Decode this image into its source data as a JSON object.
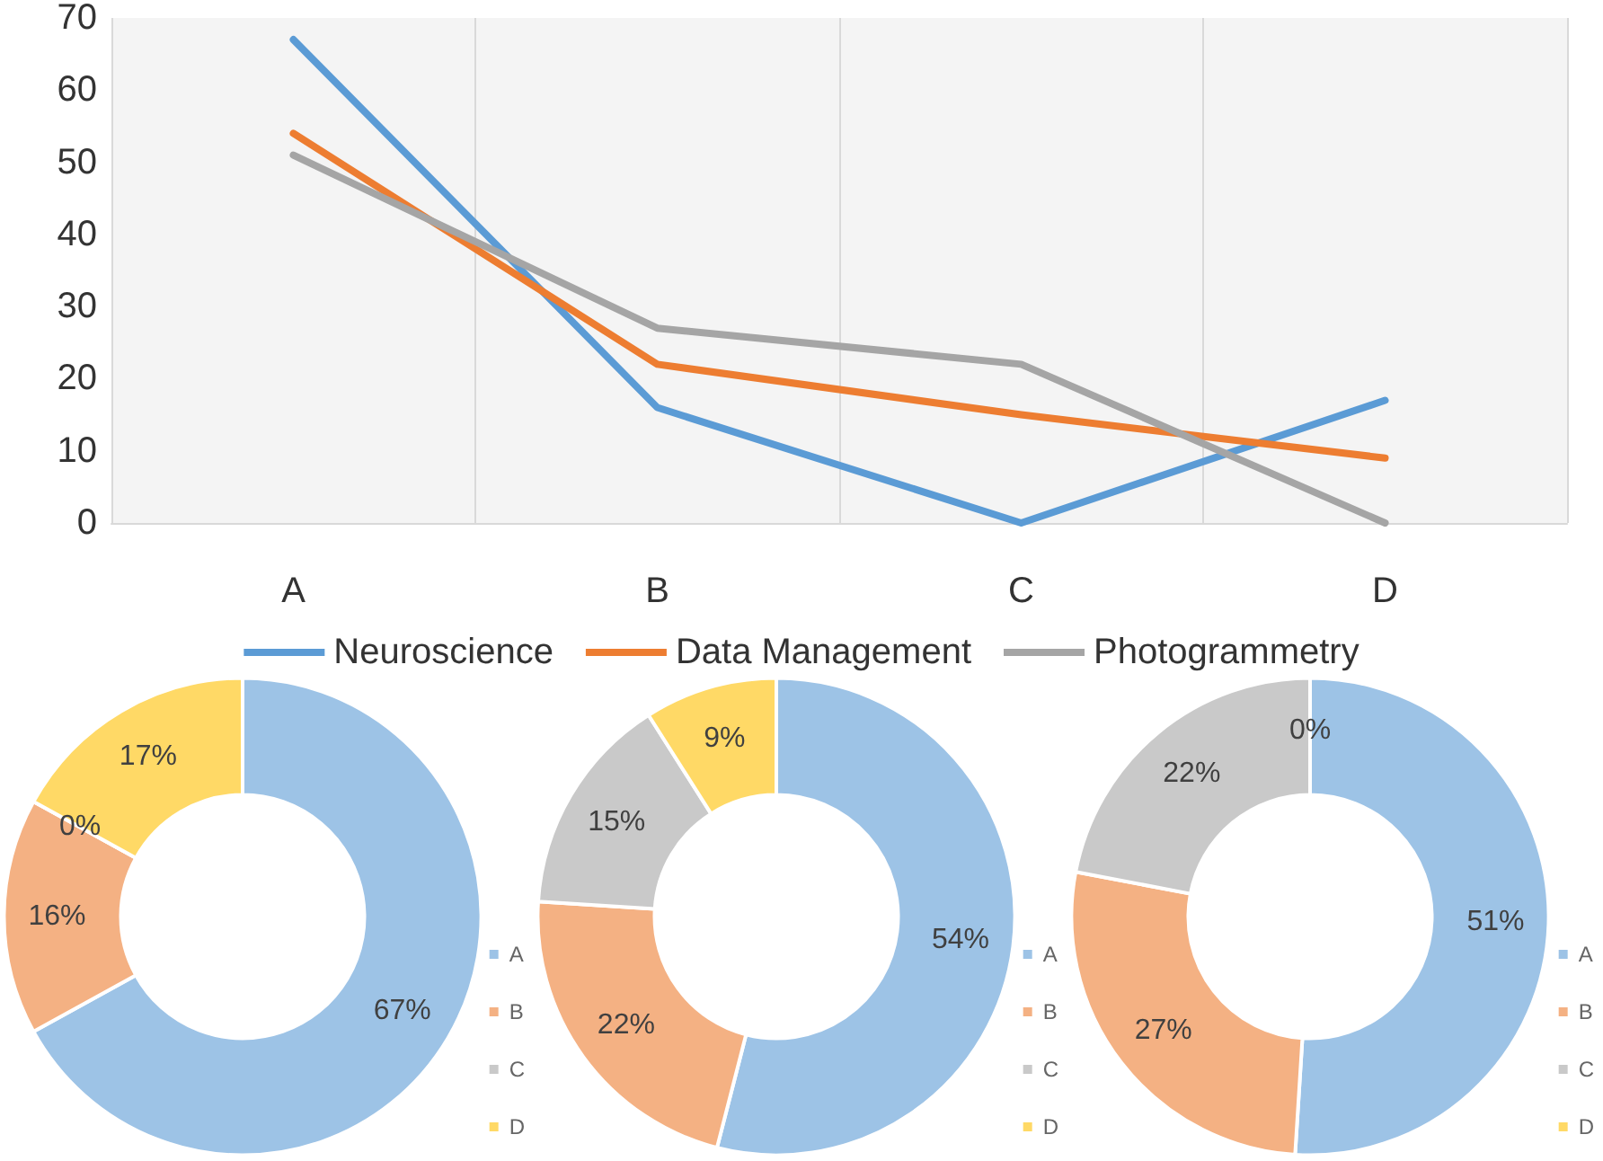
{
  "chart_data": [
    {
      "type": "line",
      "categories": [
        "A",
        "B",
        "C",
        "D"
      ],
      "ylim": [
        0,
        70
      ],
      "yticks": [
        0,
        10,
        20,
        30,
        40,
        50,
        60,
        70
      ],
      "grid": true,
      "legend": "bottom",
      "marker": "none",
      "line_style": "solid",
      "series": [
        {
          "name": "Neuroscience",
          "color": "#5b9bd5",
          "values": [
            67,
            16,
            0,
            17
          ]
        },
        {
          "name": "Data Management",
          "color": "#ed7d31",
          "values": [
            54,
            22,
            15,
            9
          ]
        },
        {
          "name": "Photogrammetry",
          "color": "#a5a5a5",
          "values": [
            51,
            27,
            22,
            0
          ]
        }
      ]
    },
    {
      "type": "donut",
      "categories": [
        "A",
        "B",
        "C",
        "D"
      ],
      "values": [
        67,
        16,
        0,
        17
      ],
      "colors": [
        "#9dc3e6",
        "#f4b183",
        "#c9c9c9",
        "#ffd966"
      ],
      "value_labels": [
        "67%",
        "16%",
        "0%",
        "17%"
      ],
      "legend": "right"
    },
    {
      "type": "donut",
      "categories": [
        "A",
        "B",
        "C",
        "D"
      ],
      "values": [
        54,
        22,
        15,
        9
      ],
      "colors": [
        "#9dc3e6",
        "#f4b183",
        "#c9c9c9",
        "#ffd966"
      ],
      "value_labels": [
        "54%",
        "22%",
        "15%",
        "9%"
      ],
      "legend": "right"
    },
    {
      "type": "donut",
      "categories": [
        "A",
        "B",
        "C",
        "D"
      ],
      "values": [
        51,
        27,
        22,
        0
      ],
      "colors": [
        "#9dc3e6",
        "#f4b183",
        "#c9c9c9",
        "#ffd966"
      ],
      "value_labels": [
        "51%",
        "27%",
        "22%",
        "0%"
      ],
      "legend": "right"
    }
  ]
}
